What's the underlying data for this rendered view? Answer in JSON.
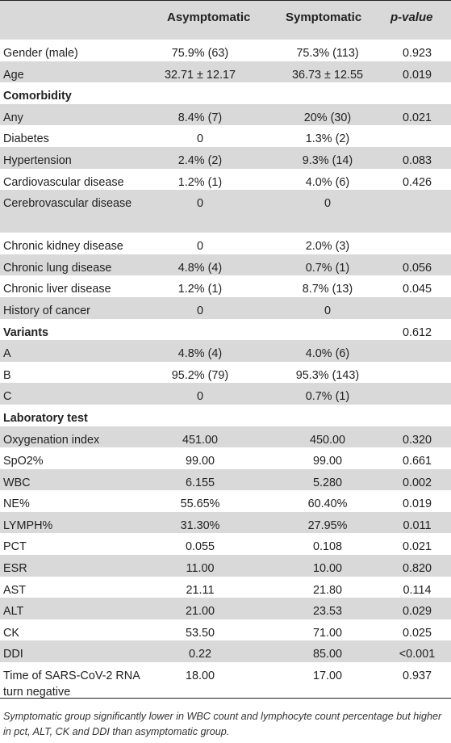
{
  "header": {
    "col1": "Asymptomatic",
    "col2": "Symptomatic",
    "col3": "p-value"
  },
  "rows": [
    {
      "label": "Gender (male)",
      "a": "75.9% (63)",
      "s": "75.3% (113)",
      "p": "0.923"
    },
    {
      "label": "Age",
      "a": "32.71 ± 12.17",
      "s": "36.73 ± 12.55",
      "p": "0.019"
    },
    {
      "label": "Comorbidity",
      "a": "",
      "s": "",
      "p": "",
      "section": true
    },
    {
      "label": "Any",
      "a": "8.4% (7)",
      "s": "20% (30)",
      "p": "0.021"
    },
    {
      "label": "Diabetes",
      "a": "0",
      "s": "1.3% (2)",
      "p": ""
    },
    {
      "label": "Hypertension",
      "a": "2.4% (2)",
      "s": "9.3% (14)",
      "p": "0.083"
    },
    {
      "label": "Cardiovascular disease",
      "a": "1.2% (1)",
      "s": "4.0% (6)",
      "p": "0.426"
    },
    {
      "label": "Cerebrovascular disease",
      "a": "0",
      "s": "0",
      "p": "",
      "tall": true
    },
    {
      "label": "Chronic kidney disease",
      "a": "0",
      "s": "2.0% (3)",
      "p": ""
    },
    {
      "label": "Chronic lung disease",
      "a": "4.8% (4)",
      "s": "0.7% (1)",
      "p": "0.056"
    },
    {
      "label": "Chronic liver disease",
      "a": "1.2% (1)",
      "s": "8.7% (13)",
      "p": "0.045"
    },
    {
      "label": "History of cancer",
      "a": "0",
      "s": "0",
      "p": ""
    },
    {
      "label": "Variants",
      "a": "",
      "s": "",
      "p": "0.612",
      "section": true
    },
    {
      "label": "A",
      "a": "4.8% (4)",
      "s": "4.0% (6)",
      "p": ""
    },
    {
      "label": "B",
      "a": "95.2% (79)",
      "s": "95.3% (143)",
      "p": ""
    },
    {
      "label": "C",
      "a": "0",
      "s": "0.7% (1)",
      "p": ""
    },
    {
      "label": "Laboratory test",
      "a": "",
      "s": "",
      "p": "",
      "section": true
    },
    {
      "label": "Oxygenation index",
      "a": "451.00",
      "s": "450.00",
      "p": "0.320"
    },
    {
      "label": "SpO2%",
      "a": "99.00",
      "s": "99.00",
      "p": "0.661"
    },
    {
      "label": "WBC",
      "a": "6.155",
      "s": "5.280",
      "p": "0.002"
    },
    {
      "label": "NE%",
      "a": "55.65%",
      "s": "60.40%",
      "p": "0.019"
    },
    {
      "label": "LYMPH%",
      "a": "31.30%",
      "s": "27.95%",
      "p": "0.011"
    },
    {
      "label": "PCT",
      "a": "0.055",
      "s": "0.108",
      "p": "0.021"
    },
    {
      "label": "ESR",
      "a": "11.00",
      "s": "10.00",
      "p": "0.820"
    },
    {
      "label": "AST",
      "a": "21.11",
      "s": "21.80",
      "p": "0.114"
    },
    {
      "label": "ALT",
      "a": "21.00",
      "s": "23.53",
      "p": "0.029"
    },
    {
      "label": "CK",
      "a": "53.50",
      "s": "71.00",
      "p": "0.025"
    },
    {
      "label": "DDI",
      "a": "0.22",
      "s": "85.00",
      "p": "<0.001"
    },
    {
      "label": "Time of SARS-CoV-2 RNA turn negative",
      "a": "18.00",
      "s": "17.00",
      "p": "0.937",
      "tall": true
    }
  ],
  "footnote": "Symptomatic group significantly lower in WBC count and lymphocyte count percentage but higher in pct, ALT, CK and DDI than asymptomatic group."
}
